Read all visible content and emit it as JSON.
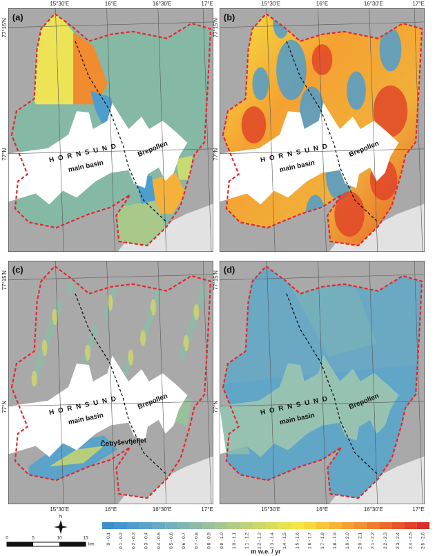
{
  "panels": [
    {
      "label": "(a)",
      "places": [
        "HORNSUND",
        "main basin",
        "Brepollen"
      ]
    },
    {
      "label": "(b)",
      "places": [
        "HORNSUND",
        "main basin",
        "Brepollen"
      ]
    },
    {
      "label": "(c)",
      "places": [
        "HORNSUND",
        "main basin",
        "Brepollen",
        "Čebyševfjellet"
      ]
    },
    {
      "label": "(d)",
      "places": [
        "HORNSUND",
        "main basin",
        "Brepollen"
      ]
    }
  ],
  "longitude_labels": [
    "15°30'E",
    "16°E",
    "16°30'E",
    "17°E"
  ],
  "latitude_labels": [
    "77°15'N",
    "77°N"
  ],
  "legend": {
    "unit": "m w.e. / yr",
    "items": [
      {
        "label": "0 - 0.1",
        "color": "#3b8fcf"
      },
      {
        "label": "0.1 - 0.2",
        "color": "#4496cf"
      },
      {
        "label": "0.2 - 0.3",
        "color": "#4f9dcd"
      },
      {
        "label": "0.3 - 0.4",
        "color": "#5ba3c9"
      },
      {
        "label": "0.4 - 0.5",
        "color": "#67a9c3"
      },
      {
        "label": "0.5 - 0.6",
        "color": "#74afbc"
      },
      {
        "label": "0.6 - 0.7",
        "color": "#80b5b3"
      },
      {
        "label": "0.7 - 0.8",
        "color": "#8cbba8"
      },
      {
        "label": "0.8 - 0.9",
        "color": "#98c19c"
      },
      {
        "label": "0.9 - 1.0",
        "color": "#a4c790"
      },
      {
        "label": "1.0 - 1.1",
        "color": "#b1cd83"
      },
      {
        "label": "1.1 - 1.2",
        "color": "#bed375"
      },
      {
        "label": "1.2 - 1.3",
        "color": "#ccd867"
      },
      {
        "label": "1.3 - 1.4",
        "color": "#dadd5a"
      },
      {
        "label": "1.4 - 1.5",
        "color": "#e8e24d"
      },
      {
        "label": "1.5 - 1.6",
        "color": "#f5e544"
      },
      {
        "label": "1.6 - 1.7",
        "color": "#f8d63e"
      },
      {
        "label": "1.7 - 1.8",
        "color": "#f8c53a"
      },
      {
        "label": "1.8 - 1.9",
        "color": "#f7b336"
      },
      {
        "label": "1.9 - 2.0",
        "color": "#f5a132"
      },
      {
        "label": "2.0 - 2.1",
        "color": "#f28f2e"
      },
      {
        "label": "2.1 - 2.2",
        "color": "#ee7c2b"
      },
      {
        "label": "2.2 - 2.3",
        "color": "#ea6929"
      },
      {
        "label": "2.3 - 2.4",
        "color": "#e55528"
      },
      {
        "label": "2.4 - 2.5",
        "color": "#e04128"
      },
      {
        "label": "2.5 - 2.6",
        "color": "#db2e2a"
      }
    ]
  },
  "scale_bar": {
    "ticks": [
      0,
      5,
      10,
      15
    ],
    "unit": "km"
  },
  "north_arrow": "N"
}
